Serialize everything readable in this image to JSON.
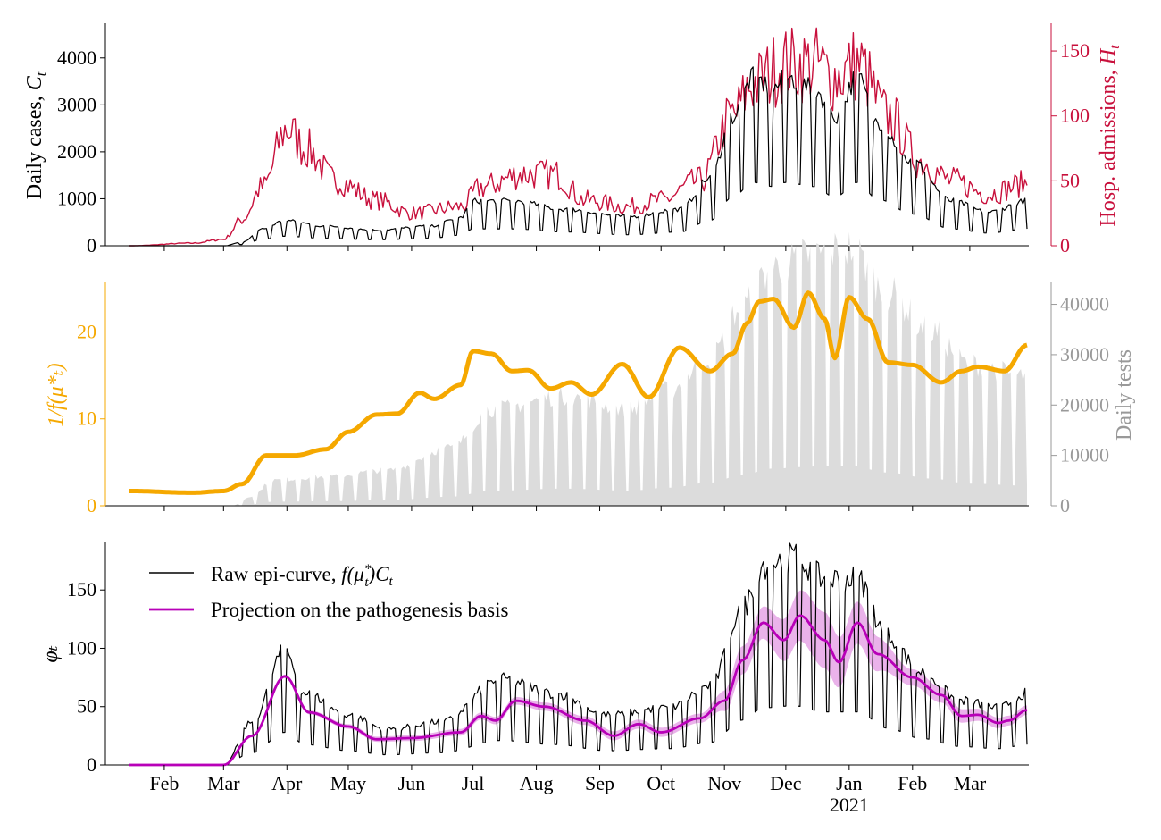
{
  "figure": {
    "date_start": "2020-01-15",
    "date_end": "2021-03-29"
  },
  "chart_data": [
    {
      "panel": "top",
      "type": "line",
      "left_axis": {
        "label_main": "Daily cases, ",
        "label_var": "C",
        "label_sub": "t",
        "ylim": [
          0,
          4700
        ],
        "ticks": [
          0,
          1000,
          2000,
          3000,
          4000
        ],
        "color": "#000000"
      },
      "right_axis": {
        "label_main": "Hosp. admissions, ",
        "label_var": "H",
        "label_sub": "t",
        "ylim": [
          0,
          170
        ],
        "ticks": [
          0,
          50,
          100,
          150
        ],
        "color": "#c8103c"
      },
      "series": [
        {
          "name": "Daily cases",
          "axis": "left",
          "color": "#000000",
          "keypoints": [
            [
              "2020-01-15",
              0
            ],
            [
              "2020-03-01",
              0
            ],
            [
              "2020-03-10",
              60
            ],
            [
              "2020-03-20",
              300
            ],
            [
              "2020-03-31",
              450
            ],
            [
              "2020-04-20",
              350
            ],
            [
              "2020-05-15",
              280
            ],
            [
              "2020-06-10",
              350
            ],
            [
              "2020-06-25",
              500
            ],
            [
              "2020-07-01",
              800
            ],
            [
              "2020-07-20",
              800
            ],
            [
              "2020-08-15",
              650
            ],
            [
              "2020-09-15",
              520
            ],
            [
              "2020-10-10",
              650
            ],
            [
              "2020-10-25",
              1200
            ],
            [
              "2020-11-05",
              2300
            ],
            [
              "2020-11-15",
              3000
            ],
            [
              "2020-11-25",
              2800
            ],
            [
              "2020-12-01",
              3000
            ],
            [
              "2020-12-15",
              2800
            ],
            [
              "2020-12-25",
              2300
            ],
            [
              "2021-01-05",
              3000
            ],
            [
              "2021-01-15",
              2200
            ],
            [
              "2021-02-01",
              1500
            ],
            [
              "2021-02-20",
              800
            ],
            [
              "2021-03-10",
              600
            ],
            [
              "2021-03-29",
              800
            ]
          ],
          "weekly_amplitude": 0.55
        },
        {
          "name": "Hosp. admissions",
          "axis": "right",
          "color": "#c8103c",
          "keypoints": [
            [
              "2020-01-15",
              0
            ],
            [
              "2020-02-15",
              2
            ],
            [
              "2020-03-01",
              5
            ],
            [
              "2020-03-10",
              20
            ],
            [
              "2020-03-20",
              45
            ],
            [
              "2020-04-01",
              90
            ],
            [
              "2020-04-10",
              75
            ],
            [
              "2020-04-25",
              50
            ],
            [
              "2020-05-15",
              35
            ],
            [
              "2020-06-01",
              25
            ],
            [
              "2020-06-25",
              30
            ],
            [
              "2020-07-05",
              45
            ],
            [
              "2020-07-25",
              55
            ],
            [
              "2020-08-10",
              55
            ],
            [
              "2020-08-25",
              35
            ],
            [
              "2020-09-15",
              30
            ],
            [
              "2020-10-01",
              35
            ],
            [
              "2020-10-20",
              50
            ],
            [
              "2020-11-05",
              100
            ],
            [
              "2020-11-15",
              125
            ],
            [
              "2020-12-01",
              140
            ],
            [
              "2020-12-15",
              140
            ],
            [
              "2020-12-25",
              130
            ],
            [
              "2021-01-05",
              140
            ],
            [
              "2021-01-20",
              100
            ],
            [
              "2021-02-05",
              65
            ],
            [
              "2021-02-20",
              50
            ],
            [
              "2021-03-10",
              40
            ],
            [
              "2021-03-29",
              48
            ]
          ],
          "noise": 0.22
        }
      ]
    },
    {
      "panel": "middle",
      "type": "line+area",
      "left_axis": {
        "label": "1/f(μ*ₜ)",
        "ylim": [
          0,
          25.5
        ],
        "ticks": [
          0,
          10,
          20
        ],
        "color": "#f5a800"
      },
      "right_axis": {
        "label": "Daily tests",
        "ylim": [
          0,
          44000
        ],
        "ticks": [
          0,
          10000,
          20000,
          30000,
          40000
        ],
        "color": "#999999"
      },
      "series": [
        {
          "name": "1/f(mu*)",
          "axis": "left",
          "color": "#f5a800",
          "keypoints": [
            [
              "2020-01-15",
              1.7
            ],
            [
              "2020-02-15",
              1.5
            ],
            [
              "2020-03-01",
              1.7
            ],
            [
              "2020-03-10",
              2.5
            ],
            [
              "2020-03-22",
              5.8
            ],
            [
              "2020-04-05",
              5.8
            ],
            [
              "2020-04-20",
              6.5
            ],
            [
              "2020-05-01",
              8.5
            ],
            [
              "2020-05-15",
              10.5
            ],
            [
              "2020-05-25",
              10.6
            ],
            [
              "2020-06-05",
              13.0
            ],
            [
              "2020-06-12",
              12.3
            ],
            [
              "2020-06-25",
              13.9
            ],
            [
              "2020-07-01",
              17.8
            ],
            [
              "2020-07-10",
              17.5
            ],
            [
              "2020-07-20",
              15.5
            ],
            [
              "2020-07-28",
              15.6
            ],
            [
              "2020-08-08",
              13.5
            ],
            [
              "2020-08-18",
              14.2
            ],
            [
              "2020-08-28",
              12.8
            ],
            [
              "2020-09-12",
              16.3
            ],
            [
              "2020-09-25",
              12.5
            ],
            [
              "2020-10-10",
              18.2
            ],
            [
              "2020-10-25",
              15.5
            ],
            [
              "2020-11-05",
              17.5
            ],
            [
              "2020-11-12",
              21.0
            ],
            [
              "2020-11-18",
              23.5
            ],
            [
              "2020-11-25",
              23.8
            ],
            [
              "2020-12-05",
              20.5
            ],
            [
              "2020-12-12",
              24.5
            ],
            [
              "2020-12-20",
              21.5
            ],
            [
              "2020-12-25",
              17.0
            ],
            [
              "2021-01-01",
              24.0
            ],
            [
              "2021-01-10",
              21.5
            ],
            [
              "2021-01-20",
              16.5
            ],
            [
              "2021-02-01",
              16.2
            ],
            [
              "2021-02-15",
              14.2
            ],
            [
              "2021-02-25",
              15.5
            ],
            [
              "2021-03-05",
              16.0
            ],
            [
              "2021-03-18",
              15.5
            ],
            [
              "2021-03-29",
              18.5
            ]
          ]
        },
        {
          "name": "Daily tests",
          "axis": "right",
          "color": "#dcdcdc",
          "keypoints": [
            [
              "2020-01-15",
              0
            ],
            [
              "2020-03-05",
              0
            ],
            [
              "2020-03-15",
              1500
            ],
            [
              "2020-03-25",
              4000
            ],
            [
              "2020-04-20",
              4500
            ],
            [
              "2020-05-20",
              5500
            ],
            [
              "2020-06-20",
              9000
            ],
            [
              "2020-07-10",
              15000
            ],
            [
              "2020-08-15",
              17000
            ],
            [
              "2020-09-15",
              15000
            ],
            [
              "2020-10-05",
              18000
            ],
            [
              "2020-10-25",
              23000
            ],
            [
              "2020-11-10",
              31000
            ],
            [
              "2020-11-25",
              37000
            ],
            [
              "2020-12-15",
              39000
            ],
            [
              "2021-01-01",
              40000
            ],
            [
              "2021-01-20",
              33000
            ],
            [
              "2021-02-10",
              27000
            ],
            [
              "2021-03-01",
              22000
            ],
            [
              "2021-03-29",
              20000
            ]
          ],
          "weekly_amplitude": 0.8
        }
      ]
    },
    {
      "panel": "bottom",
      "type": "line",
      "left_axis": {
        "label": "φₜ",
        "ylim": [
          0,
          190
        ],
        "ticks": [
          0,
          50,
          100,
          150
        ],
        "color": "#000000"
      },
      "legend": {
        "position": "top-left"
      },
      "series": [
        {
          "name": "Raw epi-curve, f(μ*ₜ)Cₜ",
          "legend_main": "Raw epi-curve, ",
          "legend_math": "f(μ",
          "legend_sup": "*",
          "legend_sub": "t",
          "legend_tail": ")C",
          "legend_tail_sub": "t",
          "color": "#000000",
          "keypoints": [
            [
              "2020-01-15",
              0
            ],
            [
              "2020-03-01",
              0
            ],
            [
              "2020-03-15",
              30
            ],
            [
              "2020-03-31",
              80
            ],
            [
              "2020-04-10",
              50
            ],
            [
              "2020-05-01",
              35
            ],
            [
              "2020-05-20",
              25
            ],
            [
              "2020-06-15",
              30
            ],
            [
              "2020-07-15",
              60
            ],
            [
              "2020-08-10",
              50
            ],
            [
              "2020-09-05",
              35
            ],
            [
              "2020-10-05",
              40
            ],
            [
              "2020-10-25",
              55
            ],
            [
              "2020-11-10",
              110
            ],
            [
              "2020-11-20",
              140
            ],
            [
              "2020-12-05",
              145
            ],
            [
              "2020-12-20",
              130
            ],
            [
              "2021-01-05",
              130
            ],
            [
              "2021-01-20",
              90
            ],
            [
              "2021-02-05",
              65
            ],
            [
              "2021-02-25",
              45
            ],
            [
              "2021-03-15",
              40
            ],
            [
              "2021-03-29",
              50
            ]
          ],
          "weekly_amplitude": 0.65
        },
        {
          "name": "Projection on the pathogenesis basis",
          "legend_label": "Projection on the pathogenesis basis",
          "color": "#b800b8",
          "band_color": "#b800b8",
          "keypoints": [
            [
              "2020-01-15",
              0
            ],
            [
              "2020-02-15",
              0
            ],
            [
              "2020-03-01",
              0
            ],
            [
              "2020-03-15",
              25
            ],
            [
              "2020-03-31",
              76
            ],
            [
              "2020-04-12",
              45
            ],
            [
              "2020-05-01",
              33
            ],
            [
              "2020-05-15",
              22
            ],
            [
              "2020-06-01",
              23
            ],
            [
              "2020-06-25",
              28
            ],
            [
              "2020-07-05",
              42
            ],
            [
              "2020-07-12",
              38
            ],
            [
              "2020-07-22",
              55
            ],
            [
              "2020-08-05",
              50
            ],
            [
              "2020-08-25",
              38
            ],
            [
              "2020-09-08",
              25
            ],
            [
              "2020-09-20",
              35
            ],
            [
              "2020-10-01",
              28
            ],
            [
              "2020-10-20",
              40
            ],
            [
              "2020-11-01",
              55
            ],
            [
              "2020-11-10",
              90
            ],
            [
              "2020-11-20",
              122
            ],
            [
              "2020-11-30",
              107
            ],
            [
              "2020-12-08",
              128
            ],
            [
              "2020-12-20",
              107
            ],
            [
              "2020-12-27",
              88
            ],
            [
              "2021-01-05",
              122
            ],
            [
              "2021-01-15",
              95
            ],
            [
              "2021-02-01",
              75
            ],
            [
              "2021-02-15",
              60
            ],
            [
              "2021-02-25",
              42
            ],
            [
              "2021-03-05",
              43
            ],
            [
              "2021-03-15",
              36
            ],
            [
              "2021-03-20",
              38
            ],
            [
              "2021-03-29",
              47
            ]
          ],
          "band_width": [
            [
              "2020-01-15",
              1
            ],
            [
              "2020-10-20",
              4
            ],
            [
              "2020-11-10",
              12
            ],
            [
              "2020-12-20",
              24
            ],
            [
              "2021-01-05",
              18
            ],
            [
              "2021-02-01",
              7
            ],
            [
              "2021-03-29",
              4
            ]
          ]
        }
      ]
    }
  ],
  "x_axis": {
    "month_ticks": [
      "Feb",
      "Mar",
      "Apr",
      "May",
      "Jun",
      "Jul",
      "Aug",
      "Sep",
      "Oct",
      "Nov",
      "Dec",
      "Jan",
      "Feb",
      "Mar"
    ],
    "month_dates": [
      "2020-02-01",
      "2020-03-01",
      "2020-04-01",
      "2020-05-01",
      "2020-06-01",
      "2020-07-01",
      "2020-08-01",
      "2020-09-01",
      "2020-10-01",
      "2020-11-01",
      "2020-12-01",
      "2021-01-01",
      "2021-02-01",
      "2021-03-01"
    ],
    "year_label": "2021"
  }
}
